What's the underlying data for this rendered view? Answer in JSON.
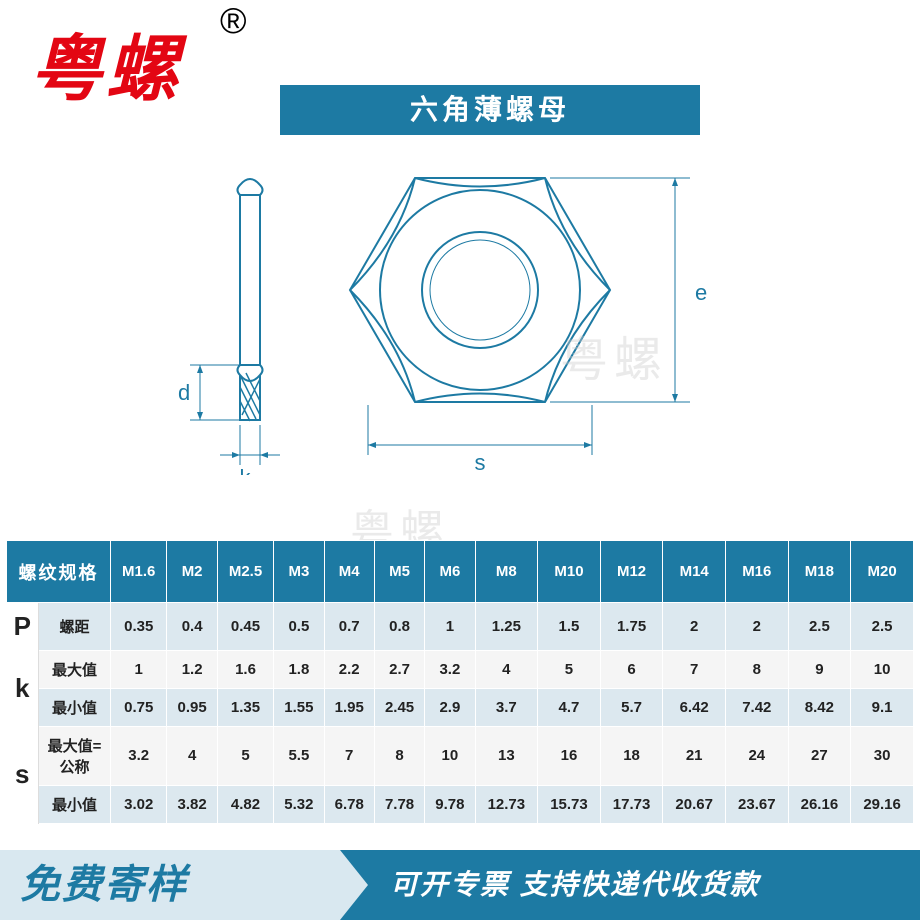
{
  "brand": {
    "name": "粤螺",
    "registered_symbol": "®"
  },
  "title": "六角薄螺母",
  "watermark": "粤螺",
  "diagram": {
    "labels": {
      "d": "d",
      "k": "k",
      "s": "s",
      "e": "e"
    },
    "colors": {
      "stroke": "#1d7aa3",
      "fill_none": "none",
      "hatch": "#1d7aa3"
    }
  },
  "table": {
    "header_first": "螺纹规格",
    "columns": [
      "M1.6",
      "M2",
      "M2.5",
      "M3",
      "M4",
      "M5",
      "M6",
      "M8",
      "M10",
      "M12",
      "M14",
      "M16",
      "M18",
      "M20"
    ],
    "groups": [
      {
        "symbol": "P",
        "rows": [
          {
            "label": "螺距",
            "values": [
              "0.35",
              "0.4",
              "0.45",
              "0.5",
              "0.7",
              "0.8",
              "1",
              "1.25",
              "1.5",
              "1.75",
              "2",
              "2",
              "2.5",
              "2.5"
            ]
          }
        ]
      },
      {
        "symbol": "k",
        "rows": [
          {
            "label": "最大值",
            "values": [
              "1",
              "1.2",
              "1.6",
              "1.8",
              "2.2",
              "2.7",
              "3.2",
              "4",
              "5",
              "6",
              "7",
              "8",
              "9",
              "10"
            ]
          },
          {
            "label": "最小值",
            "values": [
              "0.75",
              "0.95",
              "1.35",
              "1.55",
              "1.95",
              "2.45",
              "2.9",
              "3.7",
              "4.7",
              "5.7",
              "6.42",
              "7.42",
              "8.42",
              "9.1"
            ]
          }
        ]
      },
      {
        "symbol": "s",
        "rows": [
          {
            "label": "最大值=公称",
            "values": [
              "3.2",
              "4",
              "5",
              "5.5",
              "7",
              "8",
              "10",
              "13",
              "16",
              "18",
              "21",
              "24",
              "27",
              "30"
            ]
          },
          {
            "label": "最小值",
            "values": [
              "3.02",
              "3.82",
              "4.82",
              "5.32",
              "6.78",
              "7.78",
              "9.78",
              "12.73",
              "15.73",
              "17.73",
              "20.67",
              "23.67",
              "26.16",
              "29.16"
            ]
          }
        ]
      }
    ],
    "colors": {
      "header_bg": "#1d7aa3",
      "header_fg": "#ffffff",
      "row_odd_bg": "#dce8ef",
      "row_even_bg": "#f5f5f5",
      "border": "#ffffff",
      "text": "#222222"
    }
  },
  "footer": {
    "left": "免费寄样",
    "right": "可开专票 支持快递代收货款",
    "left_bg": "#d9e8f0",
    "left_fg": "#1d7aa3",
    "right_bg": "#1d7aa3",
    "right_fg": "#ffffff"
  }
}
